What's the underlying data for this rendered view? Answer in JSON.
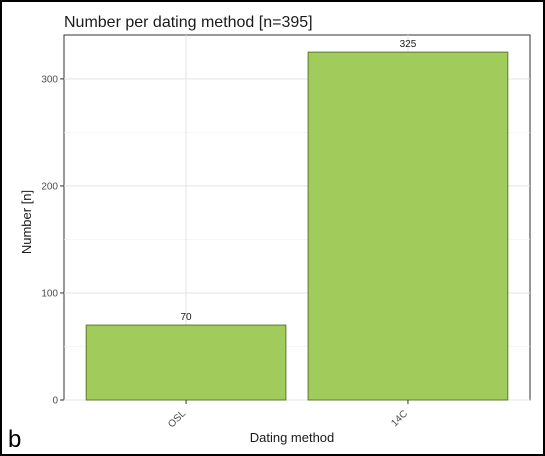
{
  "panel_letter": "b",
  "chart_data": {
    "type": "bar",
    "title": "Number per dating method [n=395]",
    "xlabel": "Dating method",
    "ylabel": "Number [n]",
    "categories": [
      "OSL",
      "14C"
    ],
    "values": [
      70,
      325
    ],
    "data_labels": [
      "70",
      "325"
    ],
    "ylim": [
      0,
      341
    ],
    "yticks": [
      0,
      100,
      200,
      300
    ],
    "grid": true,
    "bar_color": "#a1cc5b",
    "bar_edge_color": "#5d7a30"
  }
}
